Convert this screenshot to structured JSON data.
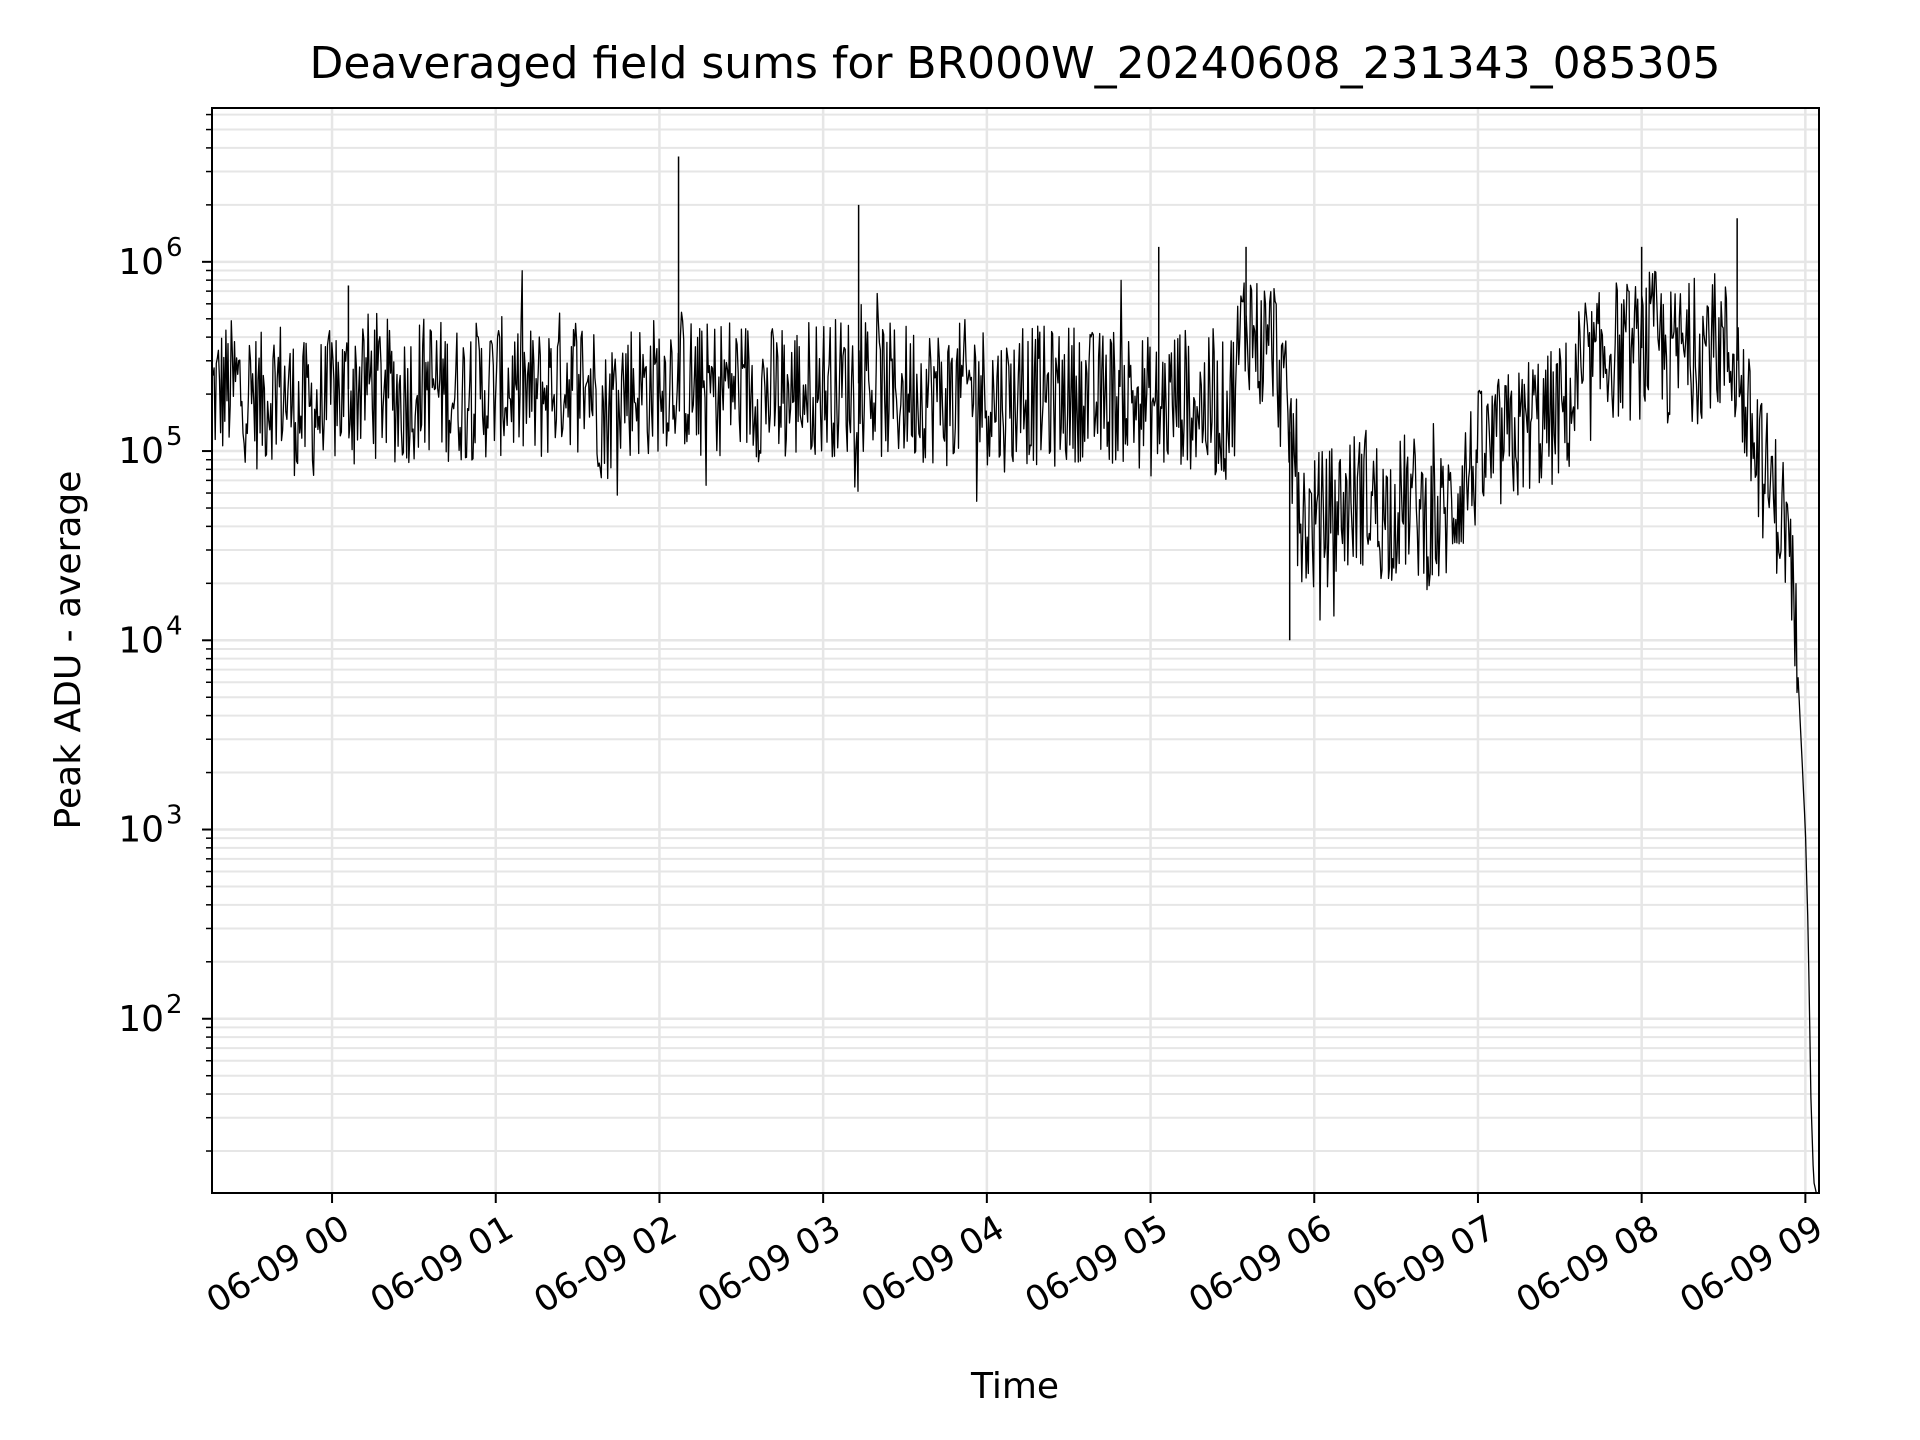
{
  "chart_data": {
    "type": "line",
    "title": "Deaveraged field sums for BR000W_20240608_231343_085305",
    "xlabel": "Time",
    "ylabel": "Peak ADU - average",
    "x_scale": "time",
    "y_scale": "log",
    "grid": true,
    "grid_minor": true,
    "legend": "none",
    "line_color": "#000000",
    "grid_color": "#e6e6e6",
    "xlim": [
      "2024-06-08 23:16",
      "2024-06-09 09:05"
    ],
    "ylim": [
      12,
      6500000
    ],
    "xticks": [
      {
        "value": "2024-06-09 00:00",
        "label": "06-09 00"
      },
      {
        "value": "2024-06-09 01:00",
        "label": "06-09 01"
      },
      {
        "value": "2024-06-09 02:00",
        "label": "06-09 02"
      },
      {
        "value": "2024-06-09 03:00",
        "label": "06-09 03"
      },
      {
        "value": "2024-06-09 04:00",
        "label": "06-09 04"
      },
      {
        "value": "2024-06-09 05:00",
        "label": "06-09 05"
      },
      {
        "value": "2024-06-09 06:00",
        "label": "06-09 06"
      },
      {
        "value": "2024-06-09 07:00",
        "label": "06-09 07"
      },
      {
        "value": "2024-06-09 08:00",
        "label": "06-09 08"
      },
      {
        "value": "2024-06-09 09:00",
        "label": "06-09 09"
      }
    ],
    "yticks": [
      {
        "value": 100,
        "label": "10",
        "exp": "2"
      },
      {
        "value": 1000,
        "label": "10",
        "exp": "3"
      },
      {
        "value": 10000,
        "label": "10",
        "exp": "4"
      },
      {
        "value": 100000,
        "label": "10",
        "exp": "5"
      },
      {
        "value": 1000000,
        "label": "10",
        "exp": "6"
      }
    ],
    "series": [
      {
        "x": [
          "2024-06-08 23:16",
          "2024-06-08 23:25",
          "2024-06-08 23:34",
          "2024-06-08 23:40",
          "2024-06-08 23:48",
          "2024-06-08 23:55",
          "2024-06-09 00:05",
          "2024-06-09 00:15",
          "2024-06-09 00:25",
          "2024-06-09 00:35",
          "2024-06-09 00:45",
          "2024-06-09 00:55",
          "2024-06-09 01:05",
          "2024-06-09 01:15",
          "2024-06-09 01:25",
          "2024-06-09 01:35",
          "2024-06-09 01:40",
          "2024-06-09 01:45",
          "2024-06-09 01:55",
          "2024-06-09 02:06",
          "2024-06-09 02:15",
          "2024-06-09 02:25",
          "2024-06-09 02:35",
          "2024-06-09 02:45",
          "2024-06-09 02:55",
          "2024-06-09 03:06",
          "2024-06-09 03:15",
          "2024-06-09 03:25",
          "2024-06-09 03:35",
          "2024-06-09 03:45",
          "2024-06-09 03:55",
          "2024-06-09 04:05",
          "2024-06-09 04:15",
          "2024-06-09 04:25",
          "2024-06-09 04:35",
          "2024-06-09 04:40",
          "2024-06-09 04:45",
          "2024-06-09 04:55",
          "2024-06-09 05:03",
          "2024-06-09 05:10",
          "2024-06-09 05:20",
          "2024-06-09 05:28",
          "2024-06-09 05:31",
          "2024-06-09 05:33",
          "2024-06-09 05:36",
          "2024-06-09 05:40",
          "2024-06-09 05:45",
          "2024-06-09 05:50",
          "2024-06-09 05:53",
          "2024-06-09 05:54",
          "2024-06-09 05:55",
          "2024-06-09 05:58",
          "2024-06-09 06:05",
          "2024-06-09 06:10",
          "2024-06-09 06:15",
          "2024-06-09 06:20",
          "2024-06-09 06:25",
          "2024-06-09 06:30",
          "2024-06-09 06:35",
          "2024-06-09 06:40",
          "2024-06-09 06:45",
          "2024-06-09 06:50",
          "2024-06-09 06:55",
          "2024-06-09 07:00",
          "2024-06-09 07:05",
          "2024-06-09 07:10",
          "2024-06-09 07:15",
          "2024-06-09 07:20",
          "2024-06-09 07:25",
          "2024-06-09 07:30",
          "2024-06-09 07:35",
          "2024-06-09 07:40",
          "2024-06-09 07:45",
          "2024-06-09 07:50",
          "2024-06-09 07:55",
          "2024-06-09 08:00",
          "2024-06-09 08:05",
          "2024-06-09 08:10",
          "2024-06-09 08:15",
          "2024-06-09 08:20",
          "2024-06-09 08:25",
          "2024-06-09 08:30",
          "2024-06-09 08:35",
          "2024-06-09 08:37",
          "2024-06-09 08:40",
          "2024-06-09 08:43",
          "2024-06-09 08:46",
          "2024-06-09 08:49",
          "2024-06-09 08:51",
          "2024-06-09 08:53",
          "2024-06-09 08:54",
          "2024-06-09 08:55",
          "2024-06-09 08:56",
          "2024-06-09 08:57",
          "2024-06-09 08:58",
          "2024-06-09 08:59",
          "2024-06-09 09:00",
          "2024-06-09 09:01",
          "2024-06-09 09:02",
          "2024-06-09 09:03",
          "2024-06-09 09:04"
        ],
        "y": [
          200000,
          220000,
          180000,
          230000,
          160000,
          170000,
          210000,
          240000,
          190000,
          230000,
          200000,
          210000,
          220000,
          190000,
          250000,
          230000,
          150000,
          220000,
          210000,
          260000,
          200000,
          230000,
          210000,
          190000,
          220000,
          220000,
          230000,
          200000,
          210000,
          190000,
          220000,
          180000,
          200000,
          190000,
          210000,
          180000,
          200000,
          190000,
          160000,
          200000,
          170000,
          160000,
          230000,
          400000,
          500000,
          350000,
          400000,
          150000,
          90000,
          70000,
          50000,
          40000,
          45000,
          50000,
          55000,
          60000,
          45000,
          50000,
          55000,
          45000,
          40000,
          50000,
          70000,
          90000,
          100000,
          110000,
          120000,
          150000,
          140000,
          160000,
          180000,
          250000,
          300000,
          350000,
          320000,
          350000,
          400000,
          300000,
          350000,
          320000,
          400000,
          350000,
          300000,
          200000,
          120000,
          90000,
          70000,
          55000,
          45000,
          40000,
          30000,
          20000,
          12000,
          8000,
          4000,
          2000,
          1000,
          300,
          40,
          14,
          12
        ]
      }
    ],
    "spikes": [
      {
        "x": "2024-06-09 02:07",
        "y": 3600000
      },
      {
        "x": "2024-06-09 03:13",
        "y": 2000000
      },
      {
        "x": "2024-06-09 05:03",
        "y": 1200000
      },
      {
        "x": "2024-06-09 05:35",
        "y": 1200000
      },
      {
        "x": "2024-06-09 08:00",
        "y": 1200000
      },
      {
        "x": "2024-06-09 08:35",
        "y": 1700000
      },
      {
        "x": "2024-06-09 00:06",
        "y": 750000
      },
      {
        "x": "2024-06-09 05:51",
        "y": 10000
      }
    ]
  }
}
